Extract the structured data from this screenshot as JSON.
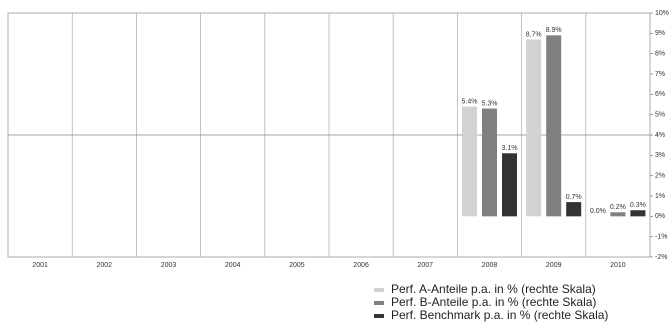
{
  "chart_data": {
    "type": "bar",
    "categories": [
      "2001",
      "2002",
      "2003",
      "2004",
      "2005",
      "2006",
      "2007",
      "2008",
      "2009",
      "2010"
    ],
    "series": [
      {
        "name": "Perf. A-Anteile p.a. in % (rechte Skala)",
        "color": "#d2d2d2",
        "values": [
          null,
          null,
          null,
          null,
          null,
          null,
          null,
          5.4,
          8.7,
          0.0
        ],
        "value_labels": [
          null,
          null,
          null,
          null,
          null,
          null,
          null,
          "5.4%",
          "8.7%",
          "0.0%"
        ]
      },
      {
        "name": "Perf. B-Anteile p.a. in % (rechte Skala)",
        "color": "#808080",
        "values": [
          null,
          null,
          null,
          null,
          null,
          null,
          null,
          5.3,
          8.9,
          0.2
        ],
        "value_labels": [
          null,
          null,
          null,
          null,
          null,
          null,
          null,
          "5.3%",
          "8.9%",
          "0.2%"
        ]
      },
      {
        "name": "Perf. Benchmark p.a. in % (rechte Skala)",
        "color": "#333333",
        "values": [
          null,
          null,
          null,
          null,
          null,
          null,
          null,
          3.1,
          0.7,
          0.3
        ],
        "value_labels": [
          null,
          null,
          null,
          null,
          null,
          null,
          null,
          "3.1%",
          "0.7%",
          "0.3%"
        ]
      }
    ],
    "ylim": [
      -2,
      10
    ],
    "yticks": [
      {
        "value": -2,
        "label": "-2%"
      },
      {
        "value": -1,
        "label": "-1%"
      },
      {
        "value": 0,
        "label": "0%"
      },
      {
        "value": 1,
        "label": "1%"
      },
      {
        "value": 2,
        "label": "2%"
      },
      {
        "value": 3,
        "label": "3%"
      },
      {
        "value": 4,
        "label": "4%"
      },
      {
        "value": 5,
        "label": "5%"
      },
      {
        "value": 6,
        "label": "6%"
      },
      {
        "value": 7,
        "label": "7%"
      },
      {
        "value": 8,
        "label": "8%"
      },
      {
        "value": 9,
        "label": "9%"
      },
      {
        "value": 10,
        "label": "10%"
      }
    ],
    "reference_line": 4,
    "axis_side": "right",
    "legend": "bottom-right"
  }
}
